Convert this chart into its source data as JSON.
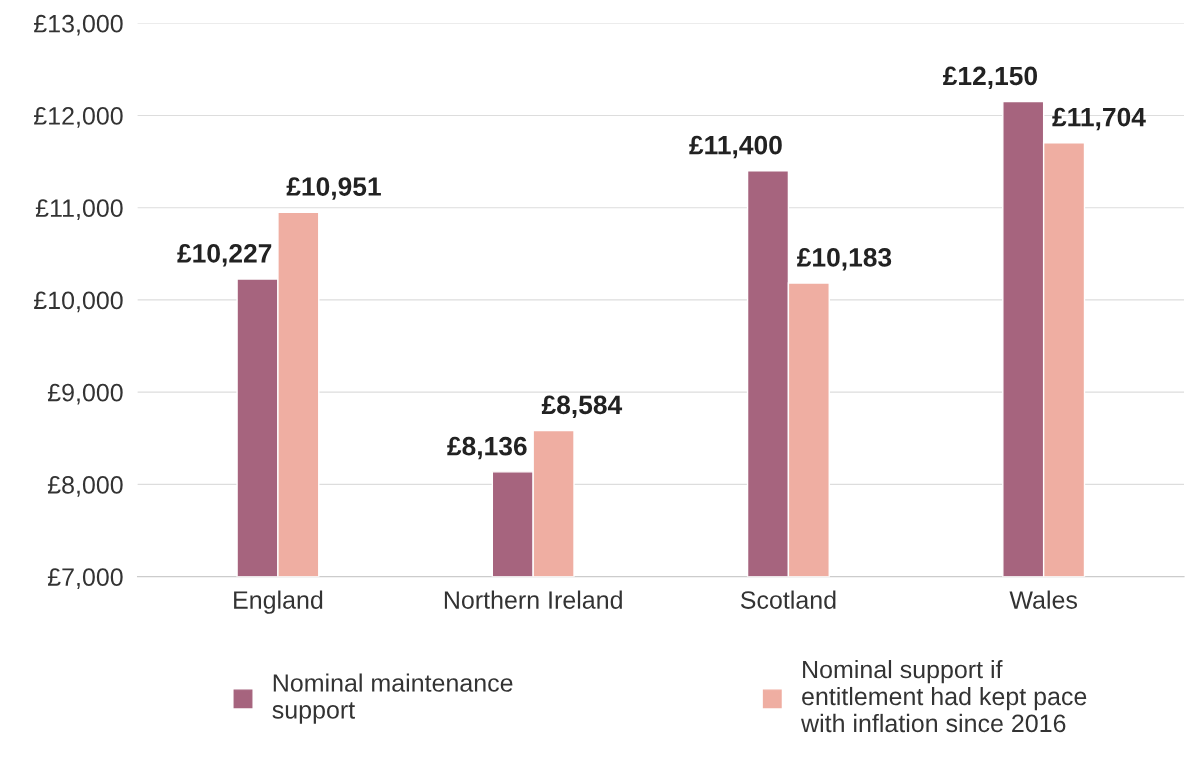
{
  "chart_data": {
    "type": "bar",
    "categories": [
      "England",
      "Northern Ireland",
      "Scotland",
      "Wales"
    ],
    "series": [
      {
        "name": "Nominal maintenance\nsupport",
        "color": "#a6647e",
        "values": [
          10227,
          8136,
          11400,
          12150
        ],
        "value_labels": [
          "£10,227",
          "£8,136",
          "£11,400",
          "£12,150"
        ]
      },
      {
        "name": "Nominal support if\nentitlement had kept pace\nwith inflation since 2016",
        "color": "#efaea2",
        "values": [
          10951,
          8584,
          10183,
          11704
        ],
        "value_labels": [
          "£10,951",
          "£8,584",
          "£10,183",
          "£11,704"
        ]
      }
    ],
    "ylim": [
      7000,
      13000
    ],
    "yticks": [
      {
        "value": 7000,
        "label": "£7,000"
      },
      {
        "value": 8000,
        "label": "£8,000"
      },
      {
        "value": 9000,
        "label": "£9,000"
      },
      {
        "value": 10000,
        "label": "£10,000"
      },
      {
        "value": 11000,
        "label": "£11,000"
      },
      {
        "value": 12000,
        "label": "£12,000"
      },
      {
        "value": 13000,
        "label": "£13,000"
      }
    ],
    "grid": "y",
    "legend": "bottom"
  }
}
